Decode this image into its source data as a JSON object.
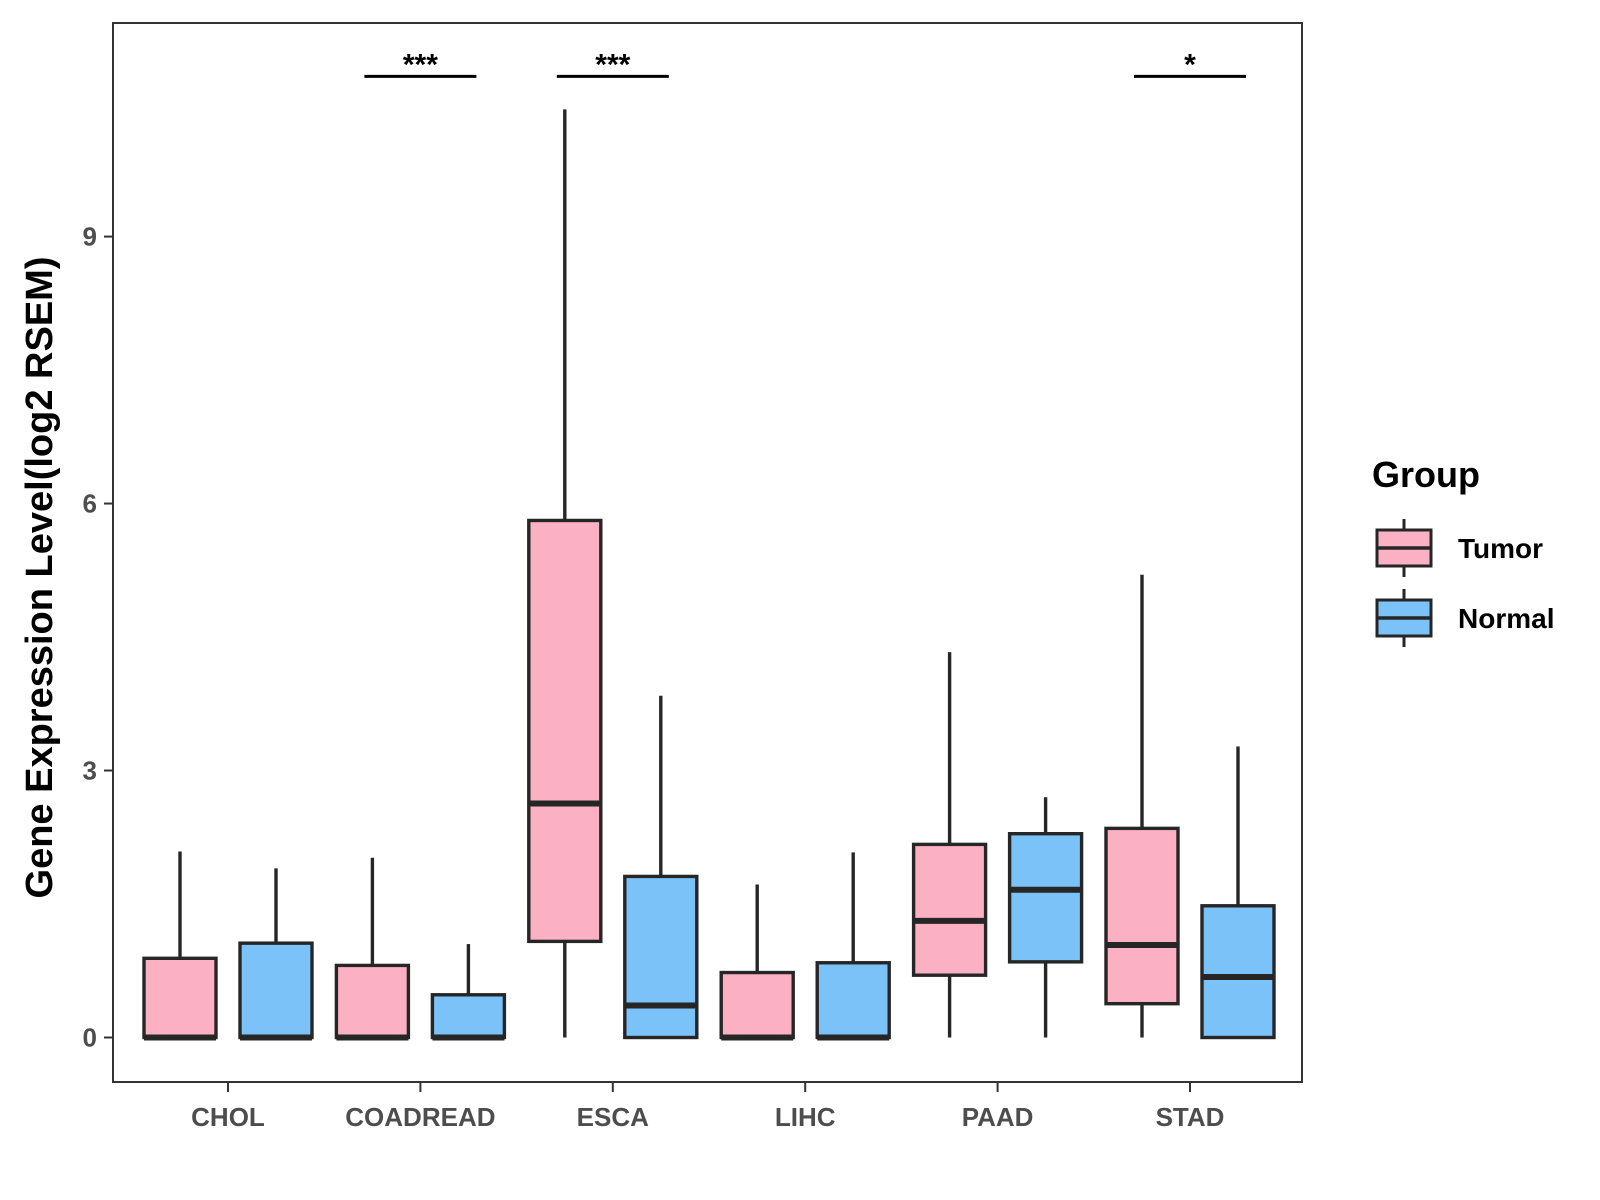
{
  "chart_data": {
    "type": "boxplot",
    "title": "",
    "xlabel": "",
    "ylabel": "Gene Expression Level(log2 RSEM)",
    "ylim": [
      -0.5,
      11.4
    ],
    "yticks": [
      0,
      3,
      6,
      9
    ],
    "categories": [
      "CHOL",
      "COADREAD",
      "ESCA",
      "LIHC",
      "PAAD",
      "STAD"
    ],
    "legend": {
      "title": "Group",
      "position": "right"
    },
    "series": [
      {
        "name": "Tumor",
        "color": "#FBB1C3",
        "boxes": [
          {
            "whisker_low": 0,
            "q1": 0,
            "median": 0,
            "q3": 0.89,
            "whisker_high": 2.09
          },
          {
            "whisker_low": 0,
            "q1": 0,
            "median": 0,
            "q3": 0.81,
            "whisker_high": 2.02
          },
          {
            "whisker_low": 0,
            "q1": 1.08,
            "median": 2.63,
            "q3": 5.81,
            "whisker_high": 10.43
          },
          {
            "whisker_low": 0,
            "q1": 0,
            "median": 0,
            "q3": 0.73,
            "whisker_high": 1.72
          },
          {
            "whisker_low": 0,
            "q1": 0.7,
            "median": 1.31,
            "q3": 2.17,
            "whisker_high": 4.33
          },
          {
            "whisker_low": 0,
            "q1": 0.38,
            "median": 1.04,
            "q3": 2.35,
            "whisker_high": 5.2
          }
        ]
      },
      {
        "name": "Normal",
        "color": "#7AC2F8",
        "boxes": [
          {
            "whisker_low": 0,
            "q1": 0,
            "median": 0,
            "q3": 1.06,
            "whisker_high": 1.9
          },
          {
            "whisker_low": 0,
            "q1": 0,
            "median": 0,
            "q3": 0.48,
            "whisker_high": 1.05
          },
          {
            "whisker_low": 0,
            "q1": 0,
            "median": 0.36,
            "q3": 1.81,
            "whisker_high": 3.84
          },
          {
            "whisker_low": 0,
            "q1": 0,
            "median": 0,
            "q3": 0.84,
            "whisker_high": 2.08
          },
          {
            "whisker_low": 0.0,
            "q1": 0.85,
            "median": 1.66,
            "q3": 2.29,
            "whisker_high": 2.7
          },
          {
            "whisker_low": 0,
            "q1": 0,
            "median": 0.68,
            "q3": 1.48,
            "whisker_high": 3.27
          }
        ]
      }
    ],
    "significance": [
      {
        "category": "COADREAD",
        "label": "***",
        "y": 10.8
      },
      {
        "category": "ESCA",
        "label": "***",
        "y": 10.8
      },
      {
        "category": "STAD",
        "label": "*",
        "y": 10.8
      }
    ]
  }
}
